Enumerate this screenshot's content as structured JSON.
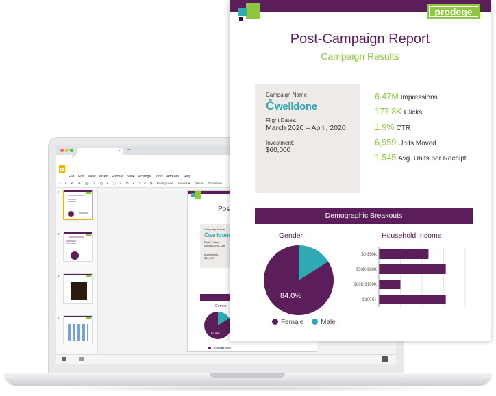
{
  "browser": {
    "tab_title": "",
    "tab_close": "×",
    "new_tab": "+",
    "nav_symbols": "← → C"
  },
  "slides_app": {
    "menu": [
      "File",
      "Edit",
      "View",
      "Insert",
      "Format",
      "Slide",
      "Arrange",
      "Tools",
      "Add-ons",
      "Help"
    ],
    "toolbar": [
      "+",
      "▾",
      "↶",
      "↷",
      "🖨",
      "↯",
      "Q",
      "▾",
      "⬚",
      "▾",
      "⬭",
      "▾",
      "\\",
      "▾",
      "⊞",
      "Background",
      "Layout ▾",
      "Theme",
      "Transition"
    ],
    "slide_numbers": [
      "1",
      "2",
      "3",
      "4"
    ],
    "mini_slide": {
      "title": "Post",
      "campaign_label": "Campaign Name",
      "brand": "welldone",
      "flight_label": "Flight Dates:",
      "flight_value": "March 2020 – Ap",
      "investment_label": "Investment:",
      "investment_value": "$60,000",
      "gender_title": "Gender",
      "pie_label": "84.0%",
      "legend_female": "Female",
      "legend_male": "Male"
    }
  },
  "report": {
    "logo_text": "prodege",
    "title": "Post-Campaign Report",
    "subtitle": "Campaign Results",
    "info": {
      "campaign_label": "Campaign Name",
      "brand": "welldone",
      "flight_label": "Flight Dates:",
      "flight_value": "March 2020 – April, 2020",
      "investment_label": "Investment:",
      "investment_value": "$60,000"
    },
    "stats": [
      {
        "value": "6.47M",
        "label": "Impressions"
      },
      {
        "value": "177.8K",
        "label": "Clicks"
      },
      {
        "value": "1.9%",
        "label": "CTR"
      },
      {
        "value": "6,959",
        "label": "Units Moved"
      },
      {
        "value": "1.545",
        "label": "Avg. Units per Receipt"
      }
    ],
    "demo_header": "Demographic Breakouts",
    "gender_title": "Gender",
    "income_title": "Household Income",
    "pie_label": "84.0%",
    "legend": [
      {
        "name": "Female",
        "color": "#5c1e5b"
      },
      {
        "name": "Male",
        "color": "#2fa9b4"
      }
    ]
  },
  "colors": {
    "purple": "#5c1e5b",
    "green": "#8dc63f",
    "teal": "#2fa9b4"
  },
  "chart_data": [
    {
      "type": "pie",
      "title": "Gender",
      "categories": [
        "Female",
        "Male"
      ],
      "values": [
        84.0,
        16.0
      ],
      "data_labels": [
        "84.0%"
      ],
      "legend": "bottom"
    },
    {
      "type": "bar",
      "orientation": "horizontal",
      "title": "Household Income",
      "categories": [
        "$0-$50K",
        "$50K-$80K",
        "$80K-$100K",
        "$100K+"
      ],
      "values": [
        0.23,
        0.31,
        0.1,
        0.31
      ],
      "xlim": [
        0,
        0.4
      ],
      "grid": true
    }
  ]
}
